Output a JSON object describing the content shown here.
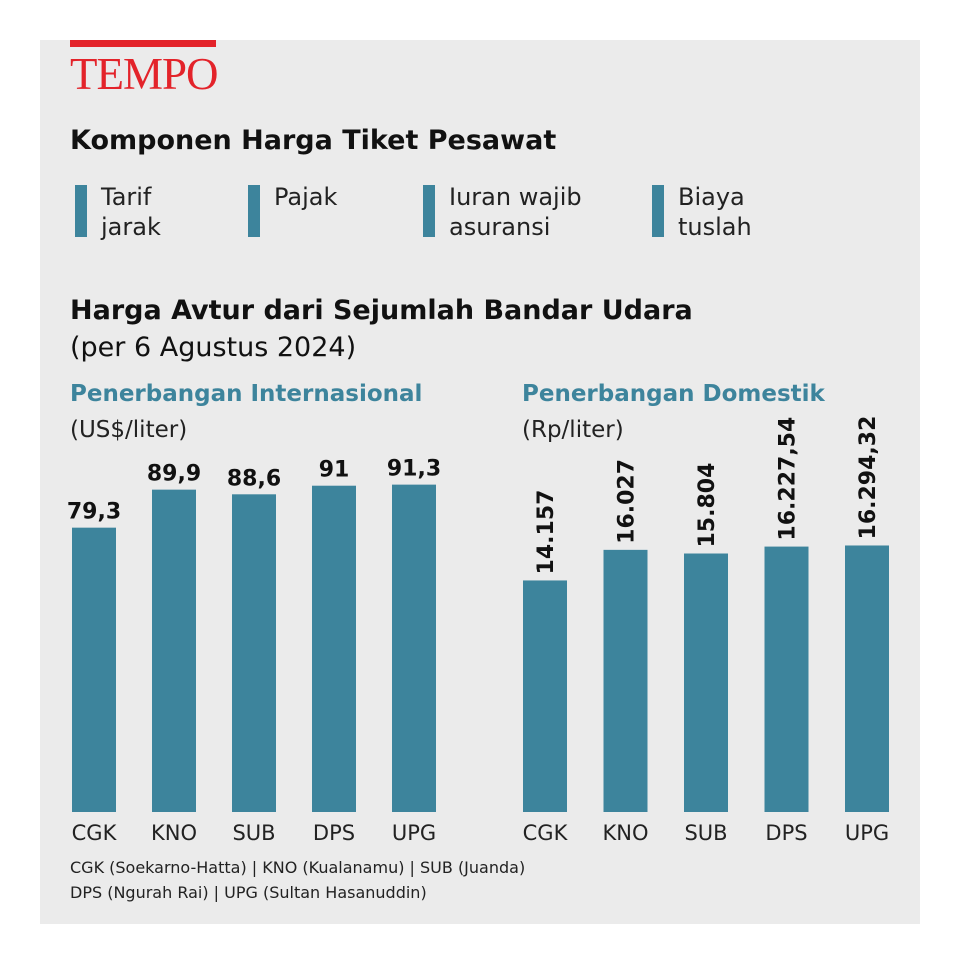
{
  "brand": {
    "name": "TEMPO",
    "color": "#e3232a"
  },
  "title1": "Komponen Harga Tiket Pesawat",
  "legend": [
    {
      "label": "Tarif jarak"
    },
    {
      "label": "Pajak"
    },
    {
      "label": "Iuran wajib asuransi"
    },
    {
      "label": "Biaya tuslah"
    }
  ],
  "title2": "Harga Avtur dari Sejumlah Bandar Udara",
  "subtitle": "(per 6 Agustus 2024)",
  "colors": {
    "bar": "#3d849c",
    "background": "#ebebeb",
    "accent": "#3d849c"
  },
  "chart_data": [
    {
      "type": "bar",
      "title": "Penerbangan Internasional",
      "unit": "(US$/liter)",
      "categories": [
        "CGK",
        "KNO",
        "SUB",
        "DPS",
        "UPG"
      ],
      "values": [
        79.3,
        89.9,
        88.6,
        91,
        91.3
      ],
      "value_labels": [
        "79,3",
        "89,9",
        "88,6",
        "91",
        "91,3"
      ],
      "ylim": [
        0,
        100.4
      ],
      "grid": false
    },
    {
      "type": "bar",
      "title": "Penerbangan Domestik",
      "unit": "(Rp/liter)",
      "categories": [
        "CGK",
        "KNO",
        "SUB",
        "DPS",
        "UPG"
      ],
      "values": [
        14157,
        16027,
        15804,
        16227.54,
        16294.32
      ],
      "value_labels": [
        "14.157",
        "16.027",
        "15.804",
        "16.227,54",
        "16.294,32"
      ],
      "ylim": [
        0,
        22010
      ],
      "grid": false
    }
  ],
  "notes": [
    "CGK (Soekarno-Hatta) | KNO (Kualanamu) | SUB (Juanda)",
    "DPS (Ngurah Rai) | UPG (Sultan Hasanuddin)"
  ]
}
